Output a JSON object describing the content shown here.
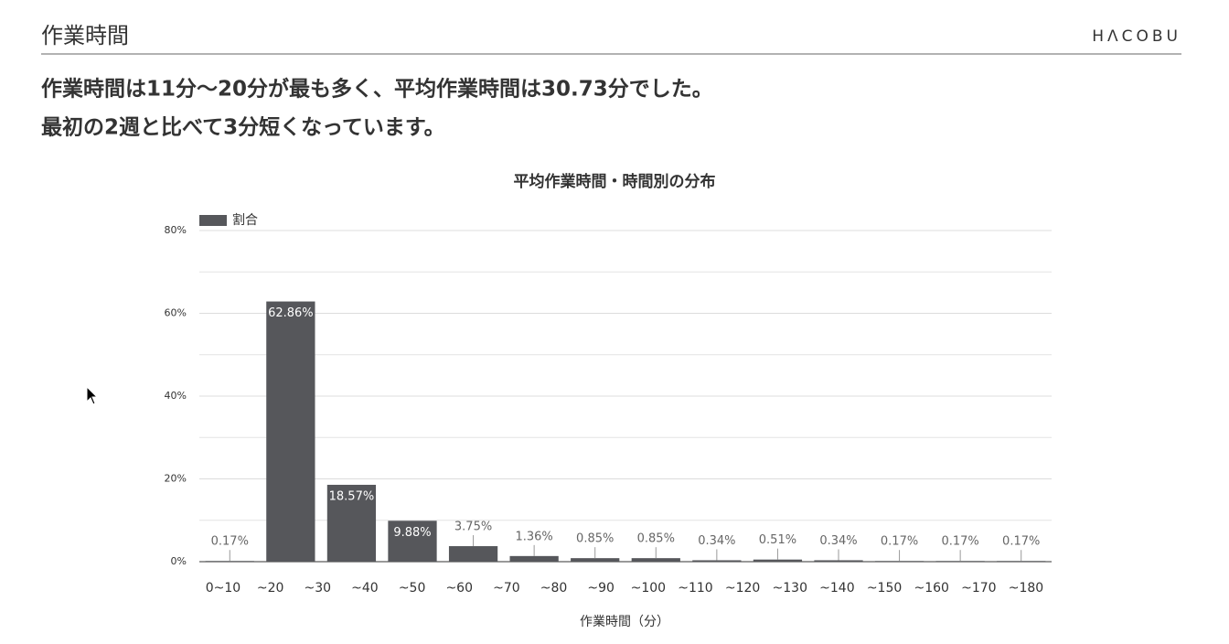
{
  "header": {
    "title": "作業時間",
    "logo": "HΛCOBU"
  },
  "headline": [
    "作業時間は11分〜20分が最も多く、平均作業時間は30.73分でした。",
    "最初の2週と比べて3分短くなっています。"
  ],
  "chart_data": {
    "type": "bar",
    "title": "平均作業時間・時間別の分布",
    "categories": [
      null,
      null,
      null,
      null,
      null,
      null,
      null,
      null,
      null,
      null,
      null,
      null,
      null,
      null
    ],
    "x_tick_labels": [
      "0~10",
      "~20",
      "~30",
      "~40",
      "~50",
      "~60",
      "~70",
      "~80",
      "~90",
      "~100",
      "~110",
      "~120",
      "~130",
      "~140",
      "~150",
      "~160",
      "~170",
      "~180"
    ],
    "series": [
      {
        "name": "割合",
        "color": "#56575b",
        "values": [
          0.17,
          62.86,
          18.57,
          9.88,
          3.75,
          1.36,
          0.85,
          0.85,
          0.34,
          0.51,
          0.34,
          0.17,
          0.17,
          0.17
        ],
        "value_labels": [
          "0.17%",
          "62.86%",
          "18.57%",
          "9.88%",
          "3.75%",
          "1.36%",
          "0.85%",
          "0.85%",
          "0.34%",
          "0.51%",
          "0.34%",
          "0.17%",
          "0.17%",
          "0.17%"
        ]
      }
    ],
    "xlabel": "作業時間（分）",
    "ylim": [
      0,
      80
    ],
    "yticks": [
      {
        "value": 0,
        "label": "0%"
      },
      {
        "value": 20,
        "label": "20%"
      },
      {
        "value": 40,
        "label": "40%"
      },
      {
        "value": 60,
        "label": "60%"
      },
      {
        "value": 80,
        "label": "80%"
      }
    ],
    "minor_yticks": [
      10,
      30,
      50,
      70
    ],
    "grid": true,
    "legend": "top-left"
  }
}
